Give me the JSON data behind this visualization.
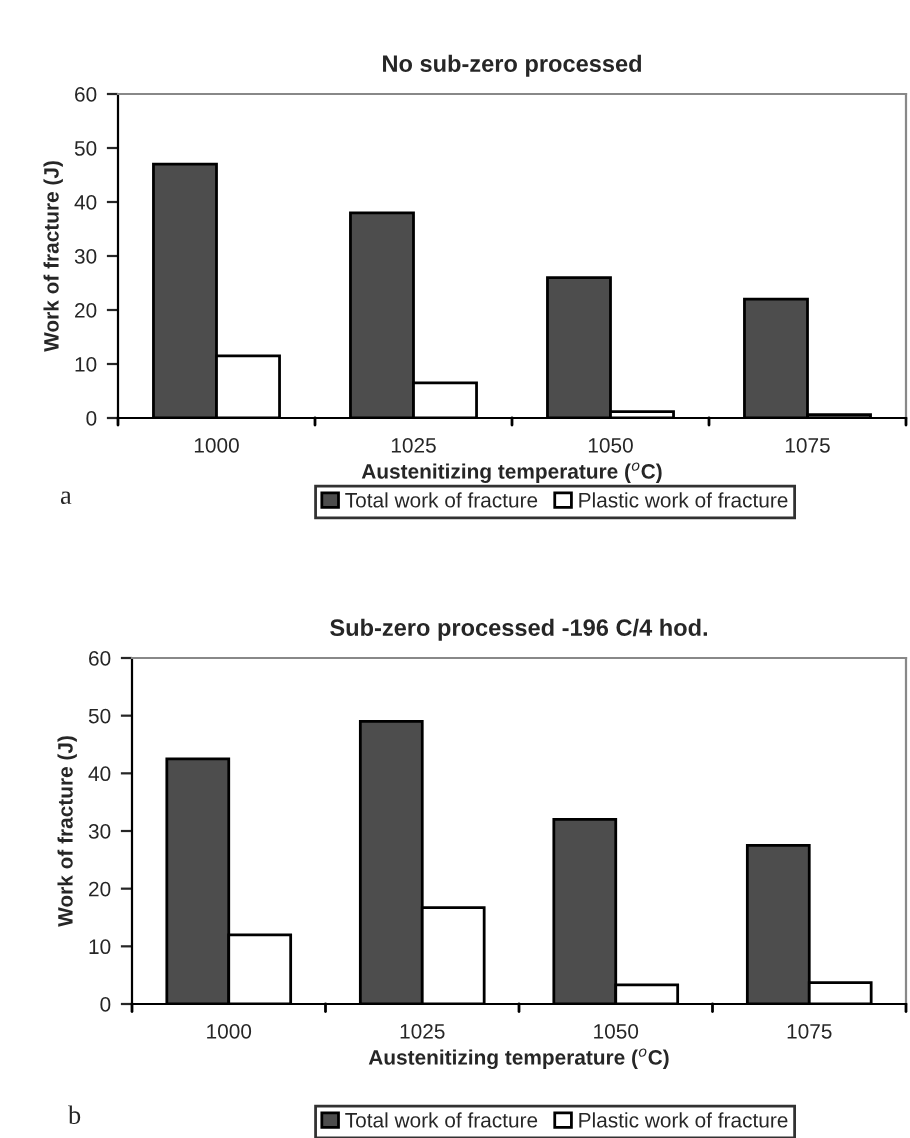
{
  "chart_data": [
    {
      "type": "bar",
      "title": "No sub-zero processed",
      "xlabel": "Austenitizing temperature ($^{o}$C)",
      "ylabel": "Work of fracture (J)",
      "categories": [
        "1000",
        "1025",
        "1050",
        "1075"
      ],
      "series": [
        {
          "name": "Total work of fracture",
          "color": "#4d4d4d",
          "values": [
            47,
            38,
            26,
            22
          ]
        },
        {
          "name": "Plastic work of fracture",
          "color": "#ffffff",
          "values": [
            11.5,
            6.5,
            1.2,
            0.6
          ]
        }
      ],
      "ylim": [
        0,
        60
      ],
      "yticks": [
        0,
        10,
        20,
        30,
        40,
        50,
        60
      ],
      "grid": false,
      "legend": "bottom",
      "annotations": [
        "a"
      ]
    },
    {
      "type": "bar",
      "title": "Sub-zero processed -196 C/4 hod.",
      "xlabel": "Austenitizing temperature ($^{o}$C)",
      "ylabel": "Work of fracture (J)",
      "categories": [
        "1000",
        "1025",
        "1050",
        "1075"
      ],
      "series": [
        {
          "name": "Total work of fracture",
          "color": "#4d4d4d",
          "values": [
            42.5,
            49,
            32,
            27.5
          ]
        },
        {
          "name": "Plastic work of fracture",
          "color": "#ffffff",
          "values": [
            12,
            16.7,
            3.3,
            3.7
          ]
        }
      ],
      "ylim": [
        0,
        60
      ],
      "yticks": [
        0,
        10,
        20,
        30,
        40,
        50,
        60
      ],
      "grid": false,
      "legend": "bottom",
      "annotations": [
        "b"
      ]
    }
  ]
}
